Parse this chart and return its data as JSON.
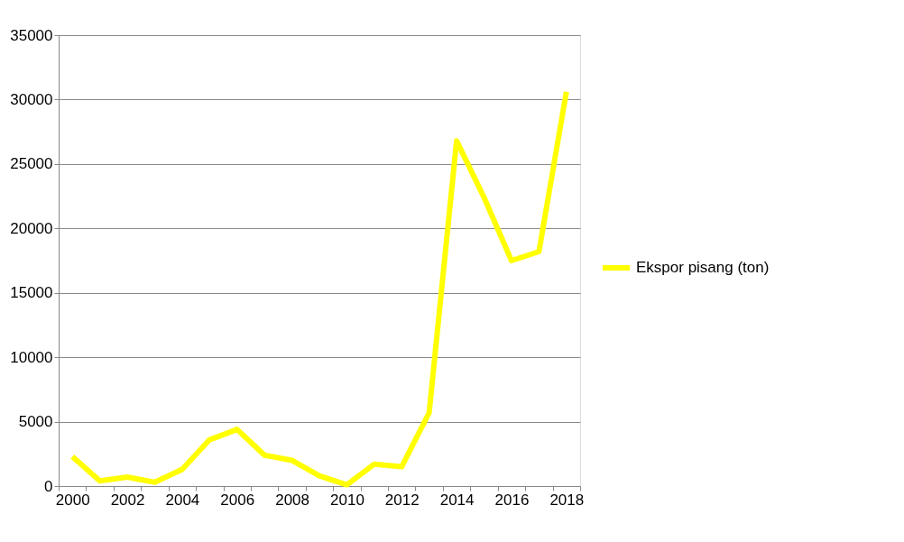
{
  "chart_data": {
    "type": "line",
    "categories": [
      "2000",
      null,
      "2002",
      null,
      "2004",
      null,
      "2006",
      null,
      "2008",
      null,
      "2010",
      null,
      "2012",
      null,
      "2014",
      null,
      "2016",
      null,
      "2018"
    ],
    "series": [
      {
        "name": "Ekspor pisang (ton)",
        "color": "#ffff00",
        "values": [
          2300,
          400,
          700,
          300,
          1300,
          3600,
          4400,
          2400,
          2000,
          800,
          100,
          1700,
          1500,
          5700,
          26800,
          22400,
          17500,
          18200,
          30600
        ]
      }
    ],
    "ylim": [
      0,
      35000
    ],
    "yticks": [
      0,
      5000,
      10000,
      15000,
      20000,
      25000,
      30000,
      35000
    ],
    "grid": "y",
    "legend": "right",
    "marker": "none",
    "line_style": "solid"
  }
}
